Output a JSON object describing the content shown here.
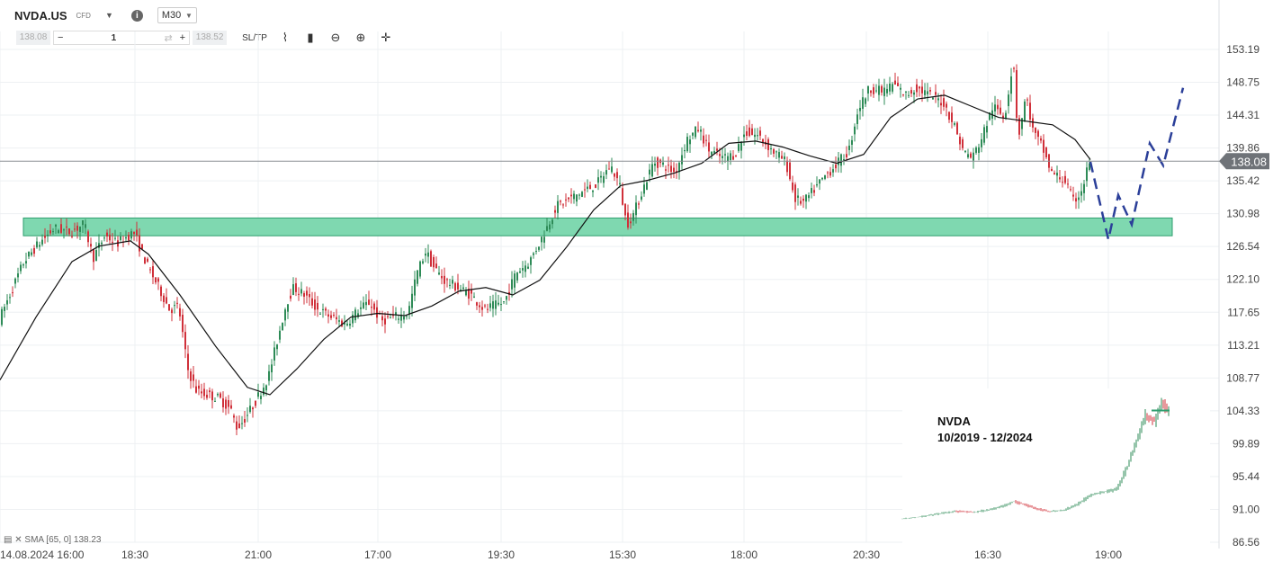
{
  "header": {
    "symbol": "NVDA.US",
    "instrument_type": "CFD",
    "timeframe": "M30"
  },
  "order_bar": {
    "sell_price": "138.08",
    "quantity": "1",
    "buy_price": "138.52",
    "sltp_label": "SL/TP"
  },
  "indicator": {
    "label": "SMA [65, 0] 138.23"
  },
  "colors": {
    "bull": "#2e8b57",
    "bear": "#d0303a",
    "zone_fill": "#7fd8b0",
    "zone_border": "#2e9e6e",
    "projection": "#2b3f99",
    "price_tag": "#6f7378"
  },
  "chart_data": {
    "type": "candlestick",
    "title": "",
    "y_ticks": [
      153.19,
      148.75,
      144.31,
      139.86,
      135.42,
      130.98,
      126.54,
      122.1,
      117.65,
      113.21,
      108.77,
      104.33,
      99.89,
      95.44,
      91.0,
      86.56
    ],
    "y_tick_labels": [
      "153.19",
      "148.75",
      "144.31",
      "139.86",
      "135.42",
      "130.98",
      "126.54",
      "122.10",
      "117.65",
      "113.21",
      "108.77",
      "104.33",
      "99.89",
      "95.44",
      "91.00",
      "86.56"
    ],
    "ylim": [
      86.56,
      153.19
    ],
    "x_tick_labels": [
      "14.08.2024 16:00",
      "18:30",
      "21:00",
      "17:00",
      "19:30",
      "15:30",
      "18:00",
      "20:30",
      "16:30",
      "19:00"
    ],
    "current_price": 138.08,
    "current_price_label": "138.08",
    "sma_period": 65,
    "support_zone": [
      128.0,
      130.4
    ],
    "price_path": [
      [
        0,
        116.5
      ],
      [
        14,
        120.5
      ],
      [
        28,
        124.5
      ],
      [
        45,
        127.0
      ],
      [
        62,
        129.0
      ],
      [
        80,
        128.5
      ],
      [
        95,
        129.6
      ],
      [
        105,
        125.0
      ],
      [
        118,
        128.0
      ],
      [
        132,
        127.0
      ],
      [
        150,
        128.5
      ],
      [
        165,
        124.0
      ],
      [
        178,
        121.0
      ],
      [
        190,
        118.0
      ],
      [
        200,
        118.5
      ],
      [
        210,
        110.0
      ],
      [
        220,
        107.0
      ],
      [
        232,
        106.5
      ],
      [
        245,
        106.0
      ],
      [
        258,
        104.5
      ],
      [
        265,
        102.0
      ],
      [
        272,
        103.0
      ],
      [
        285,
        105.5
      ],
      [
        300,
        109.0
      ],
      [
        312,
        115.0
      ],
      [
        320,
        119.0
      ],
      [
        328,
        121.0
      ],
      [
        340,
        120.0
      ],
      [
        355,
        118.0
      ],
      [
        370,
        117.0
      ],
      [
        385,
        116.0
      ],
      [
        400,
        118.0
      ],
      [
        412,
        119.0
      ],
      [
        425,
        116.5
      ],
      [
        440,
        117.0
      ],
      [
        455,
        117.5
      ],
      [
        465,
        123.0
      ],
      [
        475,
        126.0
      ],
      [
        482,
        124.0
      ],
      [
        495,
        122.0
      ],
      [
        510,
        121.0
      ],
      [
        525,
        120.0
      ],
      [
        540,
        118.0
      ],
      [
        550,
        118.5
      ],
      [
        562,
        119.0
      ],
      [
        575,
        123.0
      ],
      [
        590,
        124.5
      ],
      [
        605,
        128.0
      ],
      [
        620,
        132.0
      ],
      [
        635,
        133.0
      ],
      [
        650,
        134.0
      ],
      [
        665,
        135.0
      ],
      [
        680,
        137.5
      ],
      [
        690,
        135.0
      ],
      [
        698,
        129.5
      ],
      [
        706,
        131.0
      ],
      [
        715,
        134.0
      ],
      [
        728,
        138.0
      ],
      [
        740,
        137.5
      ],
      [
        752,
        136.5
      ],
      [
        765,
        141.0
      ],
      [
        778,
        142.5
      ],
      [
        790,
        139.5
      ],
      [
        805,
        138.5
      ],
      [
        818,
        139.0
      ],
      [
        830,
        142.0
      ],
      [
        845,
        141.5
      ],
      [
        860,
        139.5
      ],
      [
        875,
        138.0
      ],
      [
        885,
        133.0
      ],
      [
        895,
        132.5
      ],
      [
        905,
        134.0
      ],
      [
        918,
        136.0
      ],
      [
        930,
        137.5
      ],
      [
        945,
        139.5
      ],
      [
        955,
        145.0
      ],
      [
        968,
        148.0
      ],
      [
        982,
        147.5
      ],
      [
        995,
        148.5
      ],
      [
        1008,
        147.0
      ],
      [
        1020,
        148.0
      ],
      [
        1035,
        147.0
      ],
      [
        1050,
        146.0
      ],
      [
        1062,
        143.0
      ],
      [
        1072,
        139.5
      ],
      [
        1082,
        138.5
      ],
      [
        1092,
        141.0
      ],
      [
        1105,
        145.5
      ],
      [
        1118,
        144.0
      ],
      [
        1128,
        152.0
      ],
      [
        1133,
        141.0
      ],
      [
        1142,
        147.0
      ],
      [
        1150,
        142.0
      ],
      [
        1160,
        140.0
      ],
      [
        1170,
        136.5
      ],
      [
        1185,
        135.5
      ],
      [
        1195,
        132.5
      ],
      [
        1205,
        134.5
      ],
      [
        1212,
        138.0
      ]
    ],
    "sma_path": [
      [
        0,
        108.5
      ],
      [
        40,
        117.0
      ],
      [
        80,
        124.5
      ],
      [
        110,
        126.6
      ],
      [
        145,
        127.3
      ],
      [
        165,
        125.5
      ],
      [
        200,
        120.0
      ],
      [
        240,
        113.0
      ],
      [
        275,
        107.5
      ],
      [
        300,
        106.5
      ],
      [
        330,
        110.0
      ],
      [
        360,
        114.0
      ],
      [
        390,
        117.0
      ],
      [
        420,
        117.5
      ],
      [
        450,
        117.2
      ],
      [
        480,
        118.5
      ],
      [
        510,
        120.5
      ],
      [
        540,
        121.0
      ],
      [
        570,
        120.0
      ],
      [
        600,
        122.0
      ],
      [
        630,
        126.5
      ],
      [
        660,
        131.5
      ],
      [
        690,
        134.8
      ],
      [
        720,
        135.5
      ],
      [
        750,
        136.5
      ],
      [
        780,
        137.8
      ],
      [
        810,
        140.5
      ],
      [
        840,
        140.8
      ],
      [
        870,
        140.0
      ],
      [
        900,
        138.8
      ],
      [
        930,
        137.8
      ],
      [
        960,
        139.0
      ],
      [
        990,
        144.0
      ],
      [
        1020,
        146.5
      ],
      [
        1050,
        147.0
      ],
      [
        1080,
        145.5
      ],
      [
        1110,
        144.0
      ],
      [
        1140,
        143.5
      ],
      [
        1170,
        143.0
      ],
      [
        1195,
        141.0
      ],
      [
        1212,
        138.3
      ]
    ],
    "projection_path": [
      [
        1212,
        138.0
      ],
      [
        1232,
        127.5
      ],
      [
        1243,
        133.5
      ],
      [
        1258,
        129.5
      ],
      [
        1278,
        140.5
      ],
      [
        1293,
        137.5
      ],
      [
        1315,
        148.0
      ]
    ],
    "inset": {
      "title": "NVDA",
      "subtitle": "10/2019 - 12/2024",
      "series": [
        [
          0,
          1.5
        ],
        [
          20,
          2.5
        ],
        [
          40,
          4.0
        ],
        [
          60,
          5.5
        ],
        [
          80,
          5.0
        ],
        [
          100,
          6.5
        ],
        [
          115,
          8.5
        ],
        [
          125,
          11.0
        ],
        [
          135,
          9.5
        ],
        [
          150,
          7.0
        ],
        [
          165,
          5.5
        ],
        [
          180,
          6.0
        ],
        [
          195,
          9.0
        ],
        [
          210,
          14.0
        ],
        [
          225,
          16.0
        ],
        [
          240,
          17.5
        ],
        [
          252,
          30.0
        ],
        [
          262,
          44.0
        ],
        [
          272,
          58.0
        ],
        [
          282,
          54.0
        ],
        [
          290,
          64.0
        ],
        [
          296,
          60.0
        ]
      ]
    }
  }
}
